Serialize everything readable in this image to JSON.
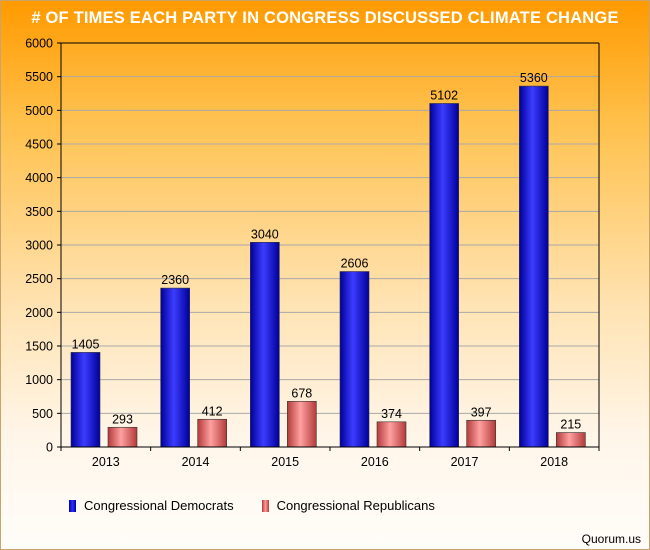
{
  "chart_data": {
    "type": "bar",
    "title": "# OF TIMES EACH PARTY IN CONGRESS DISCUSSED CLIMATE CHANGE",
    "categories": [
      "2013",
      "2014",
      "2015",
      "2016",
      "2017",
      "2018"
    ],
    "series": [
      {
        "name": "Congressional Democrats",
        "values": [
          1405,
          2360,
          3040,
          2606,
          5102,
          5360
        ],
        "color": "#1414e6"
      },
      {
        "name": "Congressional Republicans",
        "values": [
          293,
          412,
          678,
          374,
          397,
          215
        ],
        "color": "#e85a5a"
      }
    ],
    "yticks": [
      0,
      500,
      1000,
      1500,
      2000,
      2500,
      3000,
      3500,
      4000,
      4500,
      5000,
      5500,
      6000
    ],
    "ylim": [
      0,
      6000
    ],
    "grid": true,
    "legend": "bottom-left",
    "xlabel": "",
    "ylabel": ""
  },
  "source": "Quorum.us"
}
